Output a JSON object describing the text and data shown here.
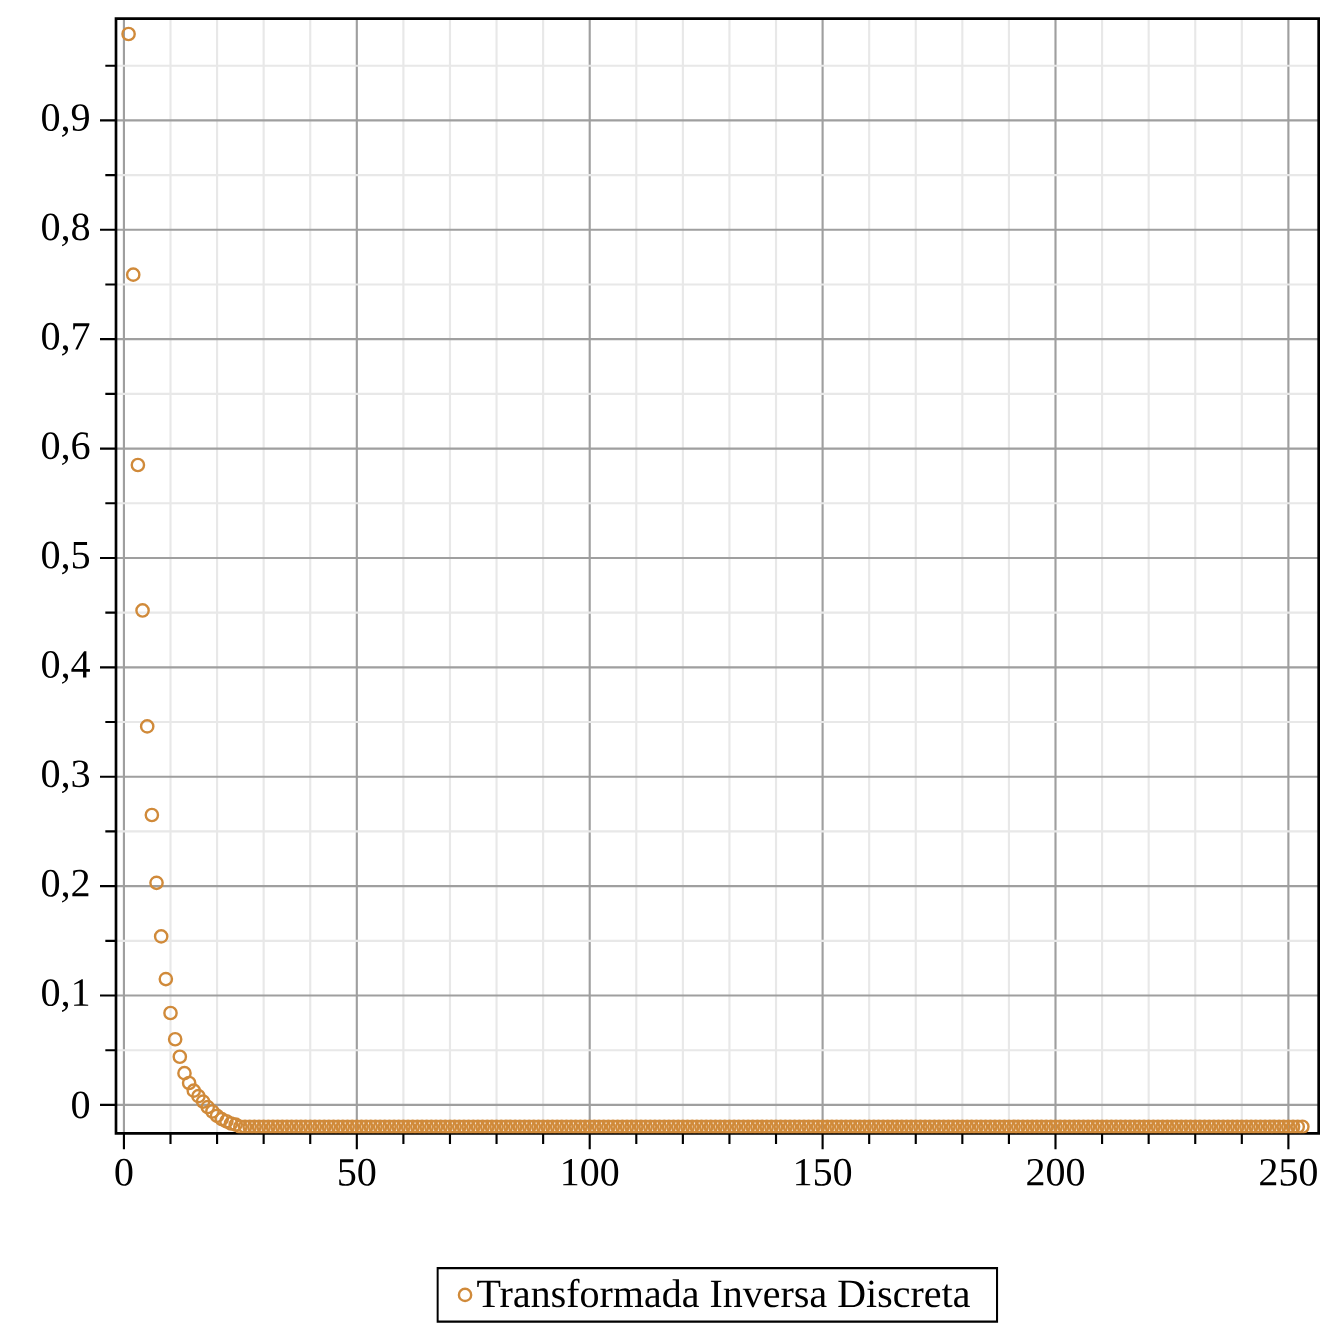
{
  "chart_data": {
    "type": "scatter",
    "marker": "circle",
    "grid": true,
    "legend": "bottom",
    "xlim": [
      -1.7,
      256.5
    ],
    "ylim": [
      -0.026,
      0.993
    ],
    "xticks": [
      0,
      {
        "value": 10,
        "label": null
      },
      {
        "value": 20,
        "label": null
      },
      {
        "value": 30,
        "label": null
      },
      {
        "value": 40,
        "label": null
      },
      50,
      {
        "value": 60,
        "label": null
      },
      {
        "value": 70,
        "label": null
      },
      {
        "value": 80,
        "label": null
      },
      {
        "value": 90,
        "label": null
      },
      100,
      {
        "value": 110,
        "label": null
      },
      {
        "value": 120,
        "label": null
      },
      {
        "value": 130,
        "label": null
      },
      {
        "value": 140,
        "label": null
      },
      150,
      {
        "value": 160,
        "label": null
      },
      {
        "value": 170,
        "label": null
      },
      {
        "value": 180,
        "label": null
      },
      {
        "value": 190,
        "label": null
      },
      200,
      {
        "value": 210,
        "label": null
      },
      {
        "value": 220,
        "label": null
      },
      {
        "value": 230,
        "label": null
      },
      {
        "value": 240,
        "label": null
      },
      250
    ],
    "yticks": [
      0,
      {
        "value": 0.05,
        "label": null
      },
      {
        "value": 0.1,
        "label": "0,1"
      },
      {
        "value": 0.15,
        "label": null
      },
      {
        "value": 0.2,
        "label": "0,2"
      },
      {
        "value": 0.25,
        "label": null
      },
      {
        "value": 0.3,
        "label": "0,3"
      },
      {
        "value": 0.35,
        "label": null
      },
      {
        "value": 0.4,
        "label": "0,4"
      },
      {
        "value": 0.45,
        "label": null
      },
      {
        "value": 0.5,
        "label": "0,5"
      },
      {
        "value": 0.55,
        "label": null
      },
      {
        "value": 0.6,
        "label": "0,6"
      },
      {
        "value": 0.65,
        "label": null
      },
      {
        "value": 0.7,
        "label": "0,7"
      },
      {
        "value": 0.75,
        "label": null
      },
      {
        "value": 0.8,
        "label": "0,8"
      },
      {
        "value": 0.85,
        "label": null
      },
      {
        "value": 0.9,
        "label": "0,9"
      },
      {
        "value": 0.95,
        "label": null
      }
    ],
    "series": [
      {
        "name": "Transformada Inversa Discreta",
        "color": "#d08a3a",
        "x": [
          1,
          2,
          3,
          4,
          5,
          6,
          7,
          8,
          9,
          10,
          11,
          12,
          13,
          14,
          15,
          16,
          17,
          18,
          19,
          20,
          21,
          22,
          23,
          24,
          25,
          26,
          27,
          28,
          29,
          30,
          31,
          32,
          33,
          34,
          35,
          36,
          37,
          38,
          39,
          40,
          41,
          42,
          43,
          44,
          45,
          46,
          47,
          48,
          49,
          50,
          51,
          52,
          53,
          54,
          55,
          56,
          57,
          58,
          59,
          60,
          61,
          62,
          63,
          64,
          65,
          66,
          67,
          68,
          69,
          70,
          71,
          72,
          73,
          74,
          75,
          76,
          77,
          78,
          79,
          80,
          81,
          82,
          83,
          84,
          85,
          86,
          87,
          88,
          89,
          90,
          91,
          92,
          93,
          94,
          95,
          96,
          97,
          98,
          99,
          100,
          101,
          102,
          103,
          104,
          105,
          106,
          107,
          108,
          109,
          110,
          111,
          112,
          113,
          114,
          115,
          116,
          117,
          118,
          119,
          120,
          121,
          122,
          123,
          124,
          125,
          126,
          127,
          128,
          129,
          130,
          131,
          132,
          133,
          134,
          135,
          136,
          137,
          138,
          139,
          140,
          141,
          142,
          143,
          144,
          145,
          146,
          147,
          148,
          149,
          150,
          151,
          152,
          153,
          154,
          155,
          156,
          157,
          158,
          159,
          160,
          161,
          162,
          163,
          164,
          165,
          166,
          167,
          168,
          169,
          170,
          171,
          172,
          173,
          174,
          175,
          176,
          177,
          178,
          179,
          180,
          181,
          182,
          183,
          184,
          185,
          186,
          187,
          188,
          189,
          190,
          191,
          192,
          193,
          194,
          195,
          196,
          197,
          198,
          199,
          200,
          201,
          202,
          203,
          204,
          205,
          206,
          207,
          208,
          209,
          210,
          211,
          212,
          213,
          214,
          215,
          216,
          217,
          218,
          219,
          220,
          221,
          222,
          223,
          224,
          225,
          226,
          227,
          228,
          229,
          230,
          231,
          232,
          233,
          234,
          235,
          236,
          237,
          238,
          239,
          240,
          241,
          242,
          243,
          244,
          245,
          246,
          247,
          248,
          249,
          250,
          251,
          252,
          253
        ],
        "values": [
          0.979,
          0.759,
          0.585,
          0.452,
          0.346,
          0.265,
          0.203,
          0.154,
          0.115,
          0.084,
          0.06,
          0.044,
          0.029,
          0.02,
          0.013,
          0.008,
          0.003,
          -0.002,
          -0.006,
          -0.01,
          -0.013,
          -0.015,
          -0.017,
          -0.018,
          -0.02,
          -0.02,
          -0.02,
          -0.02,
          -0.02,
          -0.02,
          -0.02,
          -0.02,
          -0.02,
          -0.02,
          -0.02,
          -0.02,
          -0.02,
          -0.02,
          -0.02,
          -0.02,
          -0.02,
          -0.02,
          -0.02,
          -0.02,
          -0.02,
          -0.02,
          -0.02,
          -0.02,
          -0.02,
          -0.02,
          -0.02,
          -0.02,
          -0.02,
          -0.02,
          -0.02,
          -0.02,
          -0.02,
          -0.02,
          -0.02,
          -0.02,
          -0.02,
          -0.02,
          -0.02,
          -0.02,
          -0.02,
          -0.02,
          -0.02,
          -0.02,
          -0.02,
          -0.02,
          -0.02,
          -0.02,
          -0.02,
          -0.02,
          -0.02,
          -0.02,
          -0.02,
          -0.02,
          -0.02,
          -0.02,
          -0.02,
          -0.02,
          -0.02,
          -0.02,
          -0.02,
          -0.02,
          -0.02,
          -0.02,
          -0.02,
          -0.02,
          -0.02,
          -0.02,
          -0.02,
          -0.02,
          -0.02,
          -0.02,
          -0.02,
          -0.02,
          -0.02,
          -0.02,
          -0.02,
          -0.02,
          -0.02,
          -0.02,
          -0.02,
          -0.02,
          -0.02,
          -0.02,
          -0.02,
          -0.02,
          -0.02,
          -0.02,
          -0.02,
          -0.02,
          -0.02,
          -0.02,
          -0.02,
          -0.02,
          -0.02,
          -0.02,
          -0.02,
          -0.02,
          -0.02,
          -0.02,
          -0.02,
          -0.02,
          -0.02,
          -0.02,
          -0.02,
          -0.02,
          -0.02,
          -0.02,
          -0.02,
          -0.02,
          -0.02,
          -0.02,
          -0.02,
          -0.02,
          -0.02,
          -0.02,
          -0.02,
          -0.02,
          -0.02,
          -0.02,
          -0.02,
          -0.02,
          -0.02,
          -0.02,
          -0.02,
          -0.02,
          -0.02,
          -0.02,
          -0.02,
          -0.02,
          -0.02,
          -0.02,
          -0.02,
          -0.02,
          -0.02,
          -0.02,
          -0.02,
          -0.02,
          -0.02,
          -0.02,
          -0.02,
          -0.02,
          -0.02,
          -0.02,
          -0.02,
          -0.02,
          -0.02,
          -0.02,
          -0.02,
          -0.02,
          -0.02,
          -0.02,
          -0.02,
          -0.02,
          -0.02,
          -0.02,
          -0.02,
          -0.02,
          -0.02,
          -0.02,
          -0.02,
          -0.02,
          -0.02,
          -0.02,
          -0.02,
          -0.02,
          -0.02,
          -0.02,
          -0.02,
          -0.02,
          -0.02,
          -0.02,
          -0.02,
          -0.02,
          -0.02,
          -0.02,
          -0.02,
          -0.02,
          -0.02,
          -0.02,
          -0.02,
          -0.02,
          -0.02,
          -0.02,
          -0.02,
          -0.02,
          -0.02,
          -0.02,
          -0.02,
          -0.02,
          -0.02,
          -0.02,
          -0.02,
          -0.02,
          -0.02,
          -0.02,
          -0.02,
          -0.02,
          -0.02,
          -0.02,
          -0.02,
          -0.02,
          -0.02,
          -0.02,
          -0.02,
          -0.02,
          -0.02,
          -0.02,
          -0.02,
          -0.02,
          -0.02,
          -0.02,
          -0.02,
          -0.02,
          -0.02,
          -0.02,
          -0.02,
          -0.02,
          -0.02,
          -0.02,
          -0.02,
          -0.02,
          -0.02,
          -0.02,
          -0.02,
          -0.02,
          -0.02,
          -0.02,
          -0.02
        ]
      }
    ]
  }
}
